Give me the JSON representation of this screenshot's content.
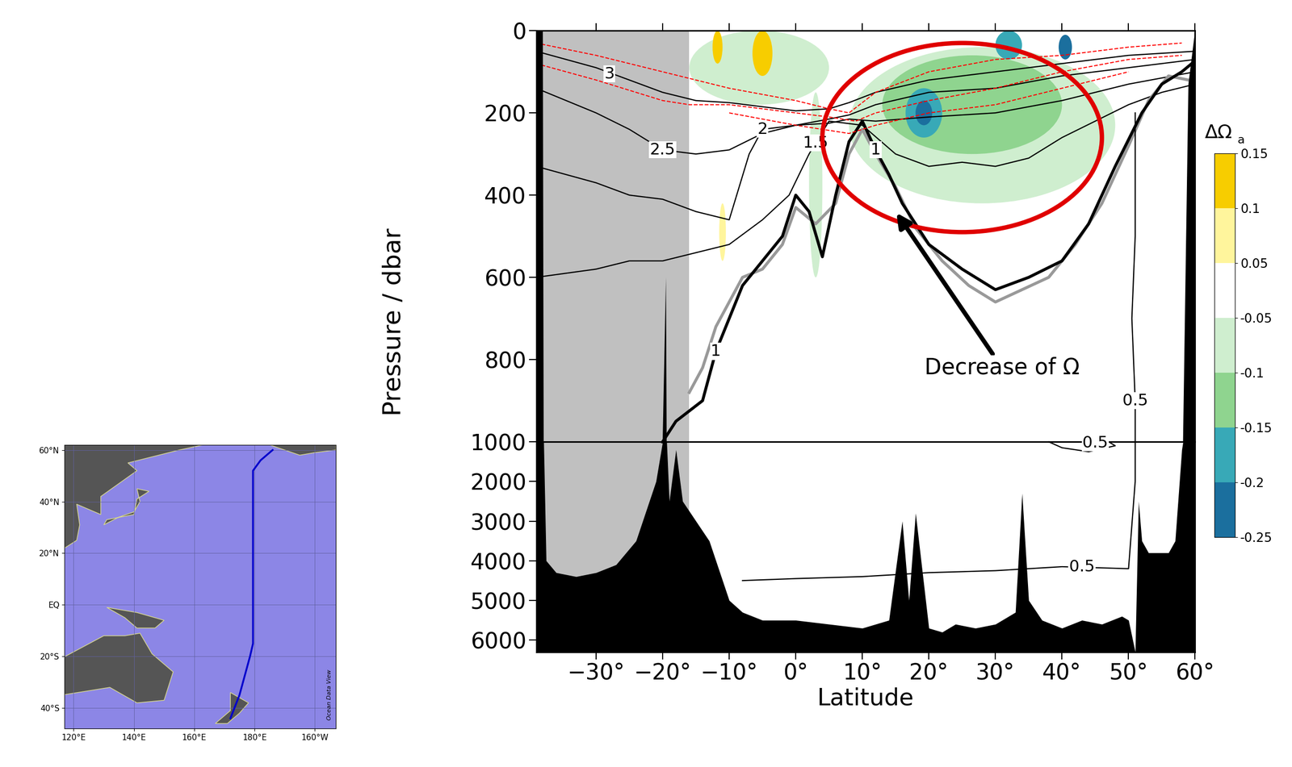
{
  "chart_data": {
    "type": "section",
    "xlabel": "Latitude",
    "ylabel": "Pressure / dbar",
    "xlim": [
      -39,
      60
    ],
    "xticks": [
      {
        "value": -30,
        "label": "−30°"
      },
      {
        "value": -20,
        "label": "−20°"
      },
      {
        "value": -10,
        "label": "−10°"
      },
      {
        "value": 0,
        "label": "0°"
      },
      {
        "value": 10,
        "label": "10°"
      },
      {
        "value": 20,
        "label": "20°"
      },
      {
        "value": 30,
        "label": "30°"
      },
      {
        "value": 40,
        "label": "40°"
      },
      {
        "value": 50,
        "label": "50°"
      },
      {
        "value": 60,
        "label": "60°"
      }
    ],
    "ylim": [
      1000,
      0
    ],
    "yticks": [
      0,
      200,
      400,
      600,
      800
    ],
    "ylim_deep": [
      6300,
      1000
    ],
    "yticks_deep": [
      1000,
      2000,
      3000,
      4000,
      5000,
      6000
    ],
    "no_data_lat": [
      -39,
      -16
    ],
    "no_data_color": "#c0c0c0",
    "bathymetry": {
      "lat": [
        -39,
        -38,
        -37.5,
        -36,
        -33,
        -30,
        -27,
        -24,
        -21,
        -20,
        -19.5,
        -19,
        -18,
        -17,
        -15,
        -13,
        -11,
        -10,
        -8,
        -5,
        0,
        5,
        10,
        14,
        16,
        17,
        18,
        20,
        22,
        24,
        27,
        30,
        33,
        34,
        35,
        37,
        40,
        43,
        46,
        49,
        50,
        51,
        51.5,
        52,
        53,
        56,
        57,
        58,
        59,
        60
      ],
      "p": [
        0,
        0,
        4000,
        4300,
        4400,
        4300,
        4100,
        3500,
        2000,
        1000,
        600,
        2500,
        1200,
        2500,
        3000,
        3500,
        4500,
        5000,
        5300,
        5500,
        5500,
        5600,
        5700,
        5500,
        3000,
        5000,
        2800,
        5700,
        5800,
        5600,
        5700,
        5600,
        5300,
        2300,
        5000,
        5500,
        5700,
        5500,
        5600,
        5400,
        5500,
        6300,
        2500,
        3500,
        3800,
        3800,
        3500,
        1200,
        130,
        0
      ],
      "color": "#000000"
    },
    "series": [
      {
        "level": 3,
        "color": "#000000",
        "line_style": "solid",
        "lat": [
          -39,
          -30,
          -25,
          -20,
          -15,
          -10,
          -5,
          0,
          5,
          8,
          12,
          20,
          30,
          40,
          50,
          60
        ],
        "p": [
          50,
          90,
          120,
          150,
          170,
          175,
          185,
          195,
          190,
          175,
          150,
          120,
          100,
          80,
          60,
          50
        ],
        "labels_at": [
          [
            -28,
            105
          ]
        ]
      },
      {
        "level": 2.5,
        "color": "#000000",
        "line_style": "solid",
        "lat": [
          -39,
          -30,
          -25,
          -20,
          -15,
          -10,
          -5,
          0,
          5,
          8,
          12,
          20,
          30,
          40,
          50,
          60
        ],
        "p": [
          140,
          200,
          240,
          290,
          300,
          290,
          250,
          230,
          215,
          205,
          180,
          150,
          140,
          110,
          90,
          70
        ],
        "labels_at": [
          [
            -20,
            290
          ]
        ]
      },
      {
        "level": 2,
        "color": "#000000",
        "line_style": "solid",
        "lat": [
          -39,
          -30,
          -25,
          -20,
          -15,
          -10,
          -7,
          -5,
          0,
          5,
          8,
          12,
          20,
          30,
          40,
          50,
          60
        ],
        "p": [
          330,
          370,
          400,
          410,
          440,
          460,
          300,
          240,
          230,
          225,
          215,
          220,
          210,
          200,
          170,
          130,
          100
        ],
        "labels_at": [
          [
            -5,
            240
          ]
        ]
      },
      {
        "level": 1.5,
        "color": "#000000",
        "line_style": "solid",
        "lat": [
          -39,
          -30,
          -25,
          -20,
          -15,
          -10,
          -5,
          -1,
          2,
          5,
          10,
          15,
          20,
          25,
          30,
          35,
          40,
          45,
          50,
          55,
          60
        ],
        "p": [
          600,
          580,
          560,
          560,
          540,
          520,
          460,
          400,
          300,
          220,
          230,
          300,
          330,
          320,
          330,
          310,
          260,
          220,
          180,
          150,
          130
        ],
        "labels_at": [
          [
            3,
            273
          ]
        ]
      },
      {
        "level": 1,
        "color": "#999999",
        "line_style": "solid",
        "lat": [
          -16,
          -14,
          -12,
          -10,
          -8,
          -5,
          -2,
          0,
          3,
          6,
          8,
          10,
          12,
          15,
          18,
          22,
          26,
          30,
          34,
          38,
          42,
          46,
          50,
          53,
          56,
          59
        ],
        "p": [
          880,
          820,
          720,
          660,
          600,
          580,
          520,
          430,
          470,
          420,
          300,
          240,
          300,
          380,
          480,
          560,
          620,
          660,
          630,
          600,
          520,
          420,
          280,
          170,
          110,
          120
        ],
        "labels_at": []
      },
      {
        "level": 1,
        "color": "#000000",
        "line_style": "solid",
        "lat": [
          -20,
          -18,
          -14,
          -12,
          -10,
          -8,
          -5,
          -2,
          0,
          2,
          4,
          6,
          8,
          10,
          12,
          14,
          16,
          20,
          25,
          30,
          35,
          40,
          44,
          48,
          52,
          55,
          58,
          59.5
        ],
        "p": [
          1000,
          950,
          900,
          780,
          700,
          620,
          560,
          500,
          400,
          440,
          550,
          400,
          270,
          220,
          290,
          350,
          420,
          520,
          580,
          630,
          600,
          560,
          470,
          330,
          200,
          130,
          100,
          80
        ],
        "labels_at": [
          [
            12,
            290
          ],
          [
            -12,
            780
          ]
        ]
      },
      {
        "level": 0.5,
        "color": "#000000",
        "line_style": "solid",
        "lat": [
          51,
          51,
          50.5,
          51,
          51,
          51,
          50,
          40,
          30,
          20,
          10,
          0,
          -8
        ],
        "p": [
          200,
          500,
          700,
          900,
          1000,
          2000,
          4200,
          4150,
          4250,
          4300,
          4400,
          4450,
          4500
        ],
        "labels_at": [
          [
            51,
            900
          ],
          [
            43,
            4160
          ]
        ]
      },
      {
        "level": 0.5,
        "color": "#000000",
        "line_style": "solid",
        "lat": [
          38,
          40,
          44,
          48,
          47,
          42,
          38
        ],
        "p": [
          1000,
          1150,
          1250,
          1100,
          1000,
          1000,
          1000
        ],
        "labels_at": [
          [
            45,
            1030
          ]
        ]
      },
      {
        "color": "#ff0000",
        "line_style": "dashed",
        "lat": [
          -39,
          -30,
          -20,
          -10,
          0,
          5,
          8,
          12,
          20,
          30,
          40,
          50,
          58
        ],
        "p": [
          30,
          60,
          100,
          140,
          170,
          190,
          200,
          150,
          100,
          70,
          60,
          40,
          30
        ]
      },
      {
        "color": "#ff0000",
        "line_style": "dashed",
        "lat": [
          -39,
          -30,
          -20,
          -16,
          -10,
          0,
          5,
          9,
          12,
          20,
          30,
          40,
          50,
          58
        ],
        "p": [
          80,
          120,
          170,
          180,
          180,
          200,
          210,
          220,
          200,
          170,
          140,
          100,
          70,
          60
        ]
      },
      {
        "color": "#ff0000",
        "line_style": "dashed",
        "lat": [
          -10,
          0,
          8,
          12,
          20,
          30,
          40,
          50
        ],
        "p": [
          200,
          230,
          250,
          230,
          200,
          180,
          140,
          100
        ]
      }
    ],
    "anomaly_patches": [
      {
        "lat": [
          -16,
          5
        ],
        "p": [
          0,
          180
        ],
        "value": -0.07
      },
      {
        "lat": [
          -12.5,
          -11
        ],
        "p": [
          0,
          80
        ],
        "value": 0.12
      },
      {
        "lat": [
          -6.5,
          -3.5
        ],
        "p": [
          0,
          110
        ],
        "value": 0.12
      },
      {
        "lat": [
          -11.5,
          -10.5
        ],
        "p": [
          420,
          560
        ],
        "value": 0.07
      },
      {
        "lat": [
          2,
          4
        ],
        "p": [
          150,
          600
        ],
        "value": -0.07
      },
      {
        "lat": [
          8,
          48
        ],
        "p": [
          40,
          420
        ],
        "value": -0.07
      },
      {
        "lat": [
          13,
          40
        ],
        "p": [
          60,
          300
        ],
        "value": -0.12
      },
      {
        "lat": [
          16.5,
          22
        ],
        "p": [
          140,
          260
        ],
        "value": -0.17
      },
      {
        "lat": [
          30,
          34
        ],
        "p": [
          0,
          70
        ],
        "value": -0.17
      },
      {
        "lat": [
          18,
          20.5
        ],
        "p": [
          170,
          230
        ],
        "value": -0.22
      },
      {
        "lat": [
          39.5,
          41.5
        ],
        "p": [
          10,
          70
        ],
        "value": -0.22
      }
    ],
    "colorbar": {
      "label": "ΔΩ",
      "label_sub": "a",
      "levels": [
        -0.25,
        -0.2,
        -0.15,
        -0.1,
        -0.05,
        0.05,
        0.1,
        0.15
      ],
      "colors": [
        "#1b6f9e",
        "#38a9b7",
        "#8fd48f",
        "#cfeecf",
        "#ffffff",
        "#fff59c",
        "#f7cd00"
      ]
    },
    "highlight": {
      "lat": [
        4,
        46
      ],
      "p": [
        30,
        490
      ],
      "color": "#e00000"
    },
    "annotation": {
      "text": "Decrease of Ω",
      "xy": [
        15,
        440
      ],
      "xytext": [
        31,
        820
      ]
    }
  },
  "map": {
    "xlim": [
      117,
      207
    ],
    "ylim": [
      -48,
      62
    ],
    "xticks": [
      {
        "value": 120,
        "label": "120°E"
      },
      {
        "value": 140,
        "label": "140°E"
      },
      {
        "value": 160,
        "label": "160°E"
      },
      {
        "value": 180,
        "label": "180°E"
      },
      {
        "value": 200,
        "label": "160°W"
      }
    ],
    "yticks": [
      {
        "value": -40,
        "label": "40°S"
      },
      {
        "value": -20,
        "label": "20°S"
      },
      {
        "value": 0,
        "label": "EQ"
      },
      {
        "value": 20,
        "label": "20°N"
      },
      {
        "value": 40,
        "label": "40°N"
      },
      {
        "value": 60,
        "label": "60°N"
      }
    ],
    "credit": "Ocean Data View",
    "ocean_color": "#8c86e6",
    "land_color": "#555555",
    "track_color": "#0000cc",
    "track": {
      "lon": [
        172,
        175,
        178.5,
        179.5,
        179.5,
        179.5,
        182,
        186
      ],
      "lat": [
        -44,
        -35,
        -20,
        -15,
        0,
        52,
        56,
        60
      ]
    },
    "land": [
      [
        [
          114,
          -22
        ],
        [
          122,
          -17
        ],
        [
          130,
          -12
        ],
        [
          137,
          -12
        ],
        [
          142,
          -11
        ],
        [
          146,
          -19
        ],
        [
          153,
          -26
        ],
        [
          150,
          -37
        ],
        [
          141,
          -38
        ],
        [
          132,
          -32
        ],
        [
          116,
          -35
        ]
      ],
      [
        [
          172,
          -34
        ],
        [
          178,
          -38
        ],
        [
          175,
          -42
        ],
        [
          171,
          -46
        ],
        [
          167,
          -46
        ],
        [
          172,
          -41
        ]
      ],
      [
        [
          117,
          62
        ],
        [
          117,
          22
        ],
        [
          121,
          25
        ],
        [
          122,
          31
        ],
        [
          121,
          39
        ],
        [
          129,
          35
        ],
        [
          129,
          42
        ],
        [
          141,
          52
        ],
        [
          138,
          55
        ],
        [
          155,
          60
        ],
        [
          163,
          62
        ]
      ],
      [
        [
          130,
          31
        ],
        [
          135,
          34
        ],
        [
          140,
          36
        ],
        [
          142,
          40
        ],
        [
          141,
          45
        ],
        [
          145,
          44
        ],
        [
          141,
          41
        ],
        [
          140,
          35
        ],
        [
          131,
          33
        ]
      ],
      [
        [
          131,
          -1
        ],
        [
          141,
          -3
        ],
        [
          150,
          -6
        ],
        [
          147,
          -9
        ],
        [
          141,
          -9
        ],
        [
          137,
          -5
        ]
      ],
      [
        [
          185,
          62
        ],
        [
          195,
          58
        ],
        [
          200,
          59
        ],
        [
          207,
          60
        ],
        [
          207,
          62
        ]
      ]
    ]
  }
}
